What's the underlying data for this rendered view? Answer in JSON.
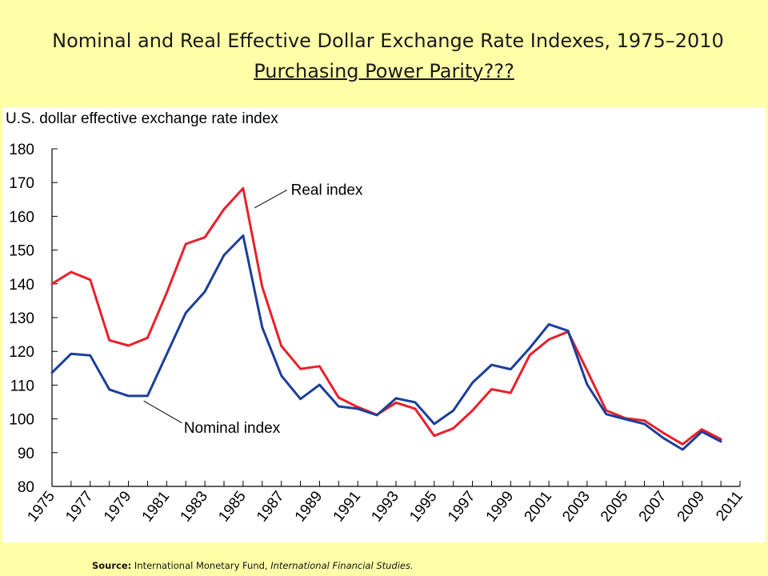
{
  "slide": {
    "title_line1": "Nominal and Real Effective Dollar Exchange Rate Indexes, 1975–2010",
    "title_line2": "Purchasing Power Parity???",
    "source_label": "Source:",
    "source_org": " International Monetary Fund, ",
    "source_pub": "International Financial Studies.",
    "background_color": "#FFFFA8"
  },
  "chart_data": {
    "type": "line",
    "title": "",
    "ylabel": "U.S. dollar effective exchange rate index",
    "xlabel": "",
    "ylim": [
      80,
      180
    ],
    "yticks": [
      80,
      90,
      100,
      110,
      120,
      130,
      140,
      150,
      160,
      170,
      180
    ],
    "xlim": [
      1975,
      2011
    ],
    "xticks": [
      1975,
      1977,
      1979,
      1981,
      1983,
      1985,
      1987,
      1989,
      1991,
      1993,
      1995,
      1997,
      1999,
      2001,
      2003,
      2005,
      2007,
      2009,
      2011
    ],
    "grid": false,
    "x": [
      1975,
      1976,
      1977,
      1978,
      1979,
      1980,
      1981,
      1982,
      1983,
      1984,
      1985,
      1986,
      1987,
      1988,
      1989,
      1990,
      1991,
      1992,
      1993,
      1994,
      1995,
      1996,
      1997,
      1998,
      1999,
      2000,
      2001,
      2002,
      2003,
      2004,
      2005,
      2006,
      2007,
      2008,
      2009,
      2010
    ],
    "series": [
      {
        "name": "Real index",
        "color": "#E8202A",
        "values": [
          140,
          143.5,
          141.2,
          123.3,
          121.7,
          124,
          137.3,
          151.8,
          153.8,
          162.1,
          168.3,
          139.1,
          121.6,
          114.8,
          115.6,
          106.3,
          103.5,
          101.2,
          104.8,
          103,
          95,
          97.2,
          102.5,
          108.8,
          107.7,
          118.9,
          123.5,
          125.8,
          114.3,
          102.5,
          100.2,
          99.5,
          95.8,
          92.5,
          96.9,
          94
        ]
      },
      {
        "name": "Nominal index",
        "color": "#1B3F9A",
        "values": [
          113.7,
          119.3,
          118.8,
          108.7,
          106.8,
          106.8,
          119.1,
          131.4,
          137.7,
          148.5,
          154.3,
          127.1,
          112.8,
          105.9,
          110.1,
          103.7,
          103,
          101.1,
          106.1,
          104.9,
          98.5,
          102.5,
          110.7,
          116,
          114.7,
          121,
          128,
          126.1,
          110.2,
          101.4,
          99.9,
          98.5,
          94.3,
          90.9,
          96.2,
          93.3
        ]
      }
    ],
    "annotations": [
      "Real index",
      "Nominal index"
    ]
  }
}
